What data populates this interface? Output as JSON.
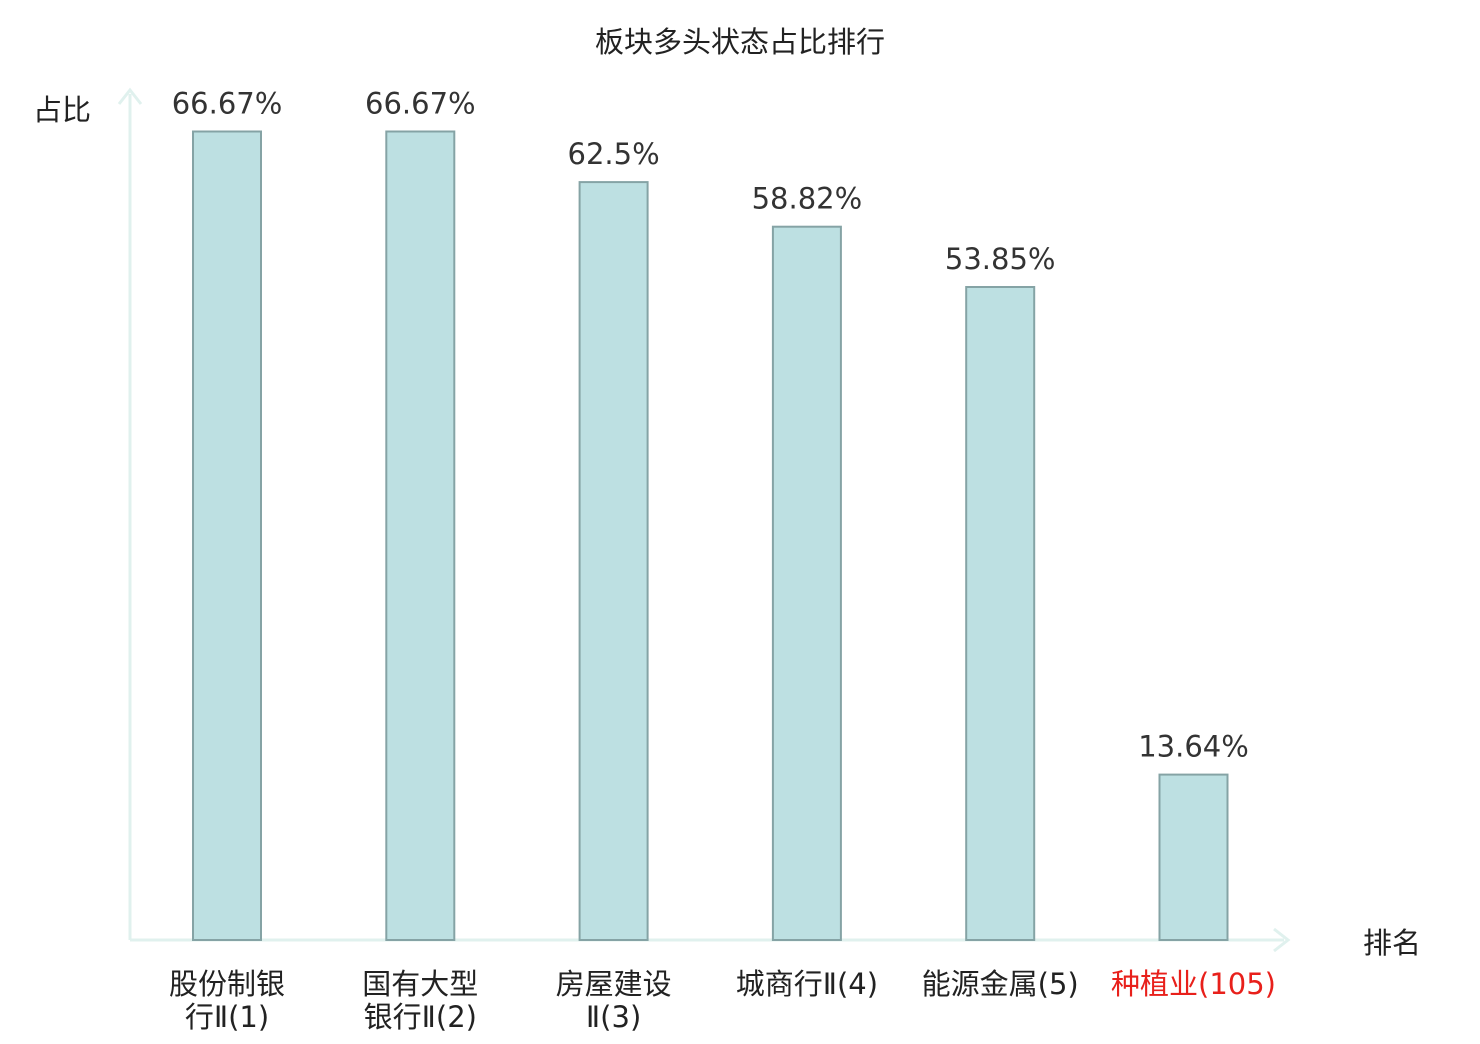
{
  "chart_data": {
    "type": "bar",
    "title": "板块多头状态占比排行",
    "ylabel": "占比",
    "xlabel": "排名",
    "ylim": [
      0,
      70
    ],
    "grid": false,
    "categories": [
      {
        "lines": [
          "股份制银",
          "行Ⅱ(1)"
        ],
        "highlight": false
      },
      {
        "lines": [
          "国有大型",
          "银行Ⅱ(2)"
        ],
        "highlight": false
      },
      {
        "lines": [
          "房屋建设",
          "Ⅱ(3)"
        ],
        "highlight": false
      },
      {
        "lines": [
          "城商行Ⅱ(4)"
        ],
        "highlight": false
      },
      {
        "lines": [
          "能源金属(5)"
        ],
        "highlight": false
      },
      {
        "lines": [
          "种植业(105)"
        ],
        "highlight": true
      }
    ],
    "values": [
      66.67,
      66.67,
      62.5,
      58.82,
      53.85,
      13.64
    ],
    "value_labels": [
      "66.67%",
      "66.67%",
      "62.5%",
      "58.82%",
      "53.85%",
      "13.64%"
    ],
    "colors": {
      "bar_fill": "#bde0e2",
      "bar_stroke": "#85a3a5",
      "axis": "#e0f1ee",
      "text": "#222222",
      "value_text": "#333333",
      "highlight_text": "#e8201b"
    }
  }
}
